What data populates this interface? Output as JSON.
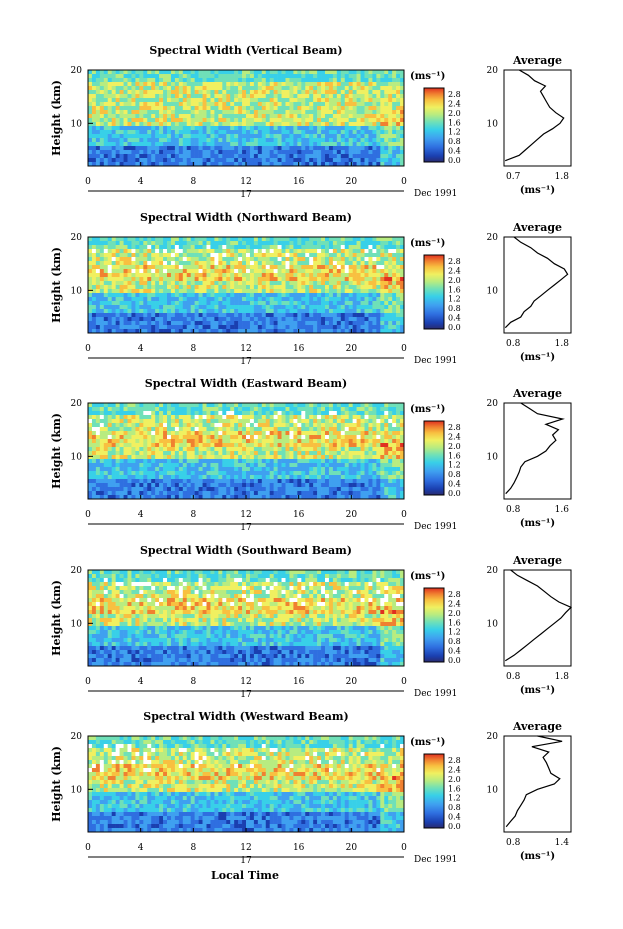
{
  "figure": {
    "xlabel": "Local Time",
    "time_ticks": [
      "0",
      "4",
      "8",
      "12",
      "16",
      "20",
      "0"
    ],
    "day_label": "17",
    "date_label": "Dec 1991",
    "ylabel": "Height (km)",
    "height_ticks": [
      "20",
      "10"
    ],
    "unit_label": "(ms⁻¹)",
    "colorbar_ticks": [
      "2.8",
      "2.4",
      "2.0",
      "1.6",
      "1.2",
      "0.8",
      "0.4",
      "0.0"
    ],
    "avg_title": "Average",
    "avg_unit": "(ms⁻¹)",
    "colors": {
      "scale": [
        "#2a2a6e",
        "#1a3fb0",
        "#2f6fe0",
        "#3fa0f0",
        "#38d0e8",
        "#6fe0b8",
        "#b8ec80",
        "#f0f060",
        "#f8c040",
        "#f08030",
        "#e03020"
      ],
      "axis": "#000000"
    }
  },
  "chart_data": [
    {
      "type": "heatmap",
      "title": "Spectral Width (Vertical Beam)",
      "xlabel": "",
      "ylabel": "Height (km)",
      "xlim": [
        0,
        24
      ],
      "ylim": [
        2,
        20
      ],
      "colorbar": [
        0,
        3.0
      ],
      "seed": 3
    },
    {
      "type": "line",
      "title": "Average",
      "xticks": [
        "0.7",
        "1.8"
      ],
      "xlim": [
        0.7,
        1.8
      ],
      "ylim": [
        2,
        20
      ],
      "xlabel": "(ms⁻¹)",
      "y": [
        3,
        4,
        5,
        6,
        7,
        8,
        9,
        10,
        11,
        12,
        13,
        14,
        15,
        16,
        17,
        18,
        19,
        20
      ],
      "x": [
        0.72,
        0.95,
        1.05,
        1.15,
        1.25,
        1.35,
        1.5,
        1.62,
        1.68,
        1.55,
        1.45,
        1.4,
        1.35,
        1.3,
        1.38,
        1.2,
        1.1,
        0.95
      ]
    },
    {
      "type": "heatmap",
      "title": "Spectral Width (Northward Beam)",
      "xlabel": "",
      "ylabel": "Height (km)",
      "xlim": [
        0,
        24
      ],
      "ylim": [
        2,
        20
      ],
      "colorbar": [
        0,
        3.0
      ],
      "seed": 7
    },
    {
      "type": "line",
      "title": "Average",
      "xticks": [
        "0.8",
        "1.8"
      ],
      "xlim": [
        0.8,
        1.8
      ],
      "ylim": [
        2,
        20
      ],
      "xlabel": "(ms⁻¹)",
      "y": [
        3,
        4,
        5,
        6,
        7,
        8,
        9,
        10,
        11,
        12,
        13,
        14,
        15,
        16,
        17,
        18,
        19,
        20
      ],
      "x": [
        0.82,
        0.9,
        1.05,
        1.1,
        1.2,
        1.25,
        1.35,
        1.45,
        1.55,
        1.65,
        1.75,
        1.7,
        1.55,
        1.45,
        1.3,
        1.2,
        1.05,
        0.95
      ]
    },
    {
      "type": "heatmap",
      "title": "Spectral Width (Eastward Beam)",
      "xlabel": "",
      "ylabel": "Height (km)",
      "xlim": [
        0,
        24
      ],
      "ylim": [
        2,
        20
      ],
      "colorbar": [
        0,
        3.0
      ],
      "seed": 11
    },
    {
      "type": "line",
      "title": "Average",
      "xticks": [
        "0.8",
        "1.6"
      ],
      "xlim": [
        0.8,
        1.6
      ],
      "ylim": [
        2,
        20
      ],
      "xlabel": "(ms⁻¹)",
      "y": [
        3,
        4,
        5,
        6,
        7,
        8,
        9,
        10,
        11,
        12,
        13,
        14,
        15,
        16,
        17,
        18,
        19,
        20
      ],
      "x": [
        0.82,
        0.88,
        0.92,
        0.95,
        0.98,
        1.0,
        1.05,
        1.2,
        1.3,
        1.35,
        1.42,
        1.38,
        1.45,
        1.3,
        1.5,
        1.2,
        1.1,
        1.0
      ]
    },
    {
      "type": "heatmap",
      "title": "Spectral Width (Southward Beam)",
      "xlabel": "",
      "ylabel": "Height (km)",
      "xlim": [
        0,
        24
      ],
      "ylim": [
        2,
        20
      ],
      "colorbar": [
        0,
        3.0
      ],
      "seed": 17
    },
    {
      "type": "line",
      "title": "Average",
      "xticks": [
        "0.8",
        "1.8"
      ],
      "xlim": [
        0.8,
        1.8
      ],
      "ylim": [
        2,
        20
      ],
      "xlabel": "(ms⁻¹)",
      "y": [
        3,
        4,
        5,
        6,
        7,
        8,
        9,
        10,
        11,
        12,
        13,
        14,
        15,
        16,
        17,
        18,
        19,
        20
      ],
      "x": [
        0.82,
        0.95,
        1.05,
        1.15,
        1.25,
        1.35,
        1.45,
        1.55,
        1.65,
        1.72,
        1.8,
        1.62,
        1.5,
        1.4,
        1.3,
        1.15,
        1.0,
        0.9
      ]
    },
    {
      "type": "heatmap",
      "title": "Spectral Width (Westward Beam)",
      "xlabel": "Local Time",
      "ylabel": "Height (km)",
      "xlim": [
        0,
        24
      ],
      "ylim": [
        2,
        20
      ],
      "colorbar": [
        0,
        3.0
      ],
      "seed": 23
    },
    {
      "type": "line",
      "title": "Average",
      "xticks": [
        "0.8",
        "1.4"
      ],
      "xlim": [
        0.8,
        1.4
      ],
      "ylim": [
        2,
        20
      ],
      "xlabel": "(ms⁻¹)",
      "y": [
        3,
        4,
        5,
        6,
        7,
        8,
        9,
        10,
        11,
        12,
        13,
        14,
        15,
        16,
        17,
        18,
        19,
        20
      ],
      "x": [
        0.82,
        0.86,
        0.9,
        0.92,
        0.95,
        0.98,
        1.0,
        1.1,
        1.25,
        1.3,
        1.22,
        1.2,
        1.18,
        1.15,
        1.2,
        1.05,
        1.32,
        1.1
      ]
    }
  ]
}
